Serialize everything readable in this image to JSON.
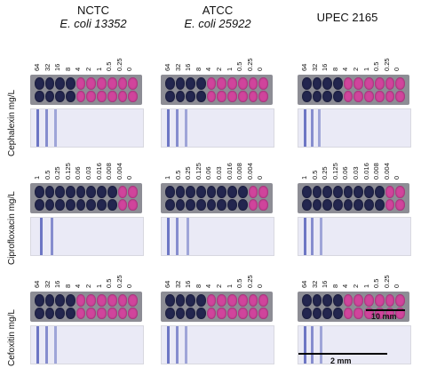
{
  "columns": [
    {
      "line1": "NCTC",
      "line2": "E. coli 13352"
    },
    {
      "line1": "ATCC",
      "line2": "E. coli 25922"
    },
    {
      "line1": "UPEC 2165",
      "line2": ""
    }
  ],
  "rows": [
    {
      "label": "Cephalexin mg/L",
      "conc": [
        "64",
        "32",
        "16",
        "8",
        "4",
        "2",
        "1",
        "0.5",
        "0.25",
        "0"
      ]
    },
    {
      "label": "Ciprofloxacin mg/L",
      "conc": [
        "1",
        "0.5",
        "0.25",
        "0.125",
        "0.06",
        "0.03",
        "0.016",
        "0.008",
        "0.004",
        "0"
      ]
    },
    {
      "label": "Cefoxitin mg/L",
      "conc": [
        "64",
        "32",
        "16",
        "8",
        "4",
        "2",
        "1",
        "0.5",
        "0.25",
        "0"
      ]
    }
  ],
  "well_growth": [
    [
      [
        4,
        4,
        4
      ],
      [
        4,
        4,
        4
      ],
      [
        4,
        4,
        4
      ]
    ],
    [
      [
        8,
        8,
        8
      ],
      [
        8,
        8,
        8
      ],
      [
        8,
        8,
        8
      ]
    ],
    [
      [
        4,
        4,
        4
      ],
      [
        4,
        4,
        4
      ],
      [
        4,
        4,
        4
      ]
    ]
  ],
  "colors": {
    "no_growth": "#23264f",
    "growth": "#d0449c",
    "band": "#6d76c4",
    "strip_bg": "#eaeaf6"
  },
  "scale_plate": "10 mm",
  "scale_strip": "2 mm"
}
